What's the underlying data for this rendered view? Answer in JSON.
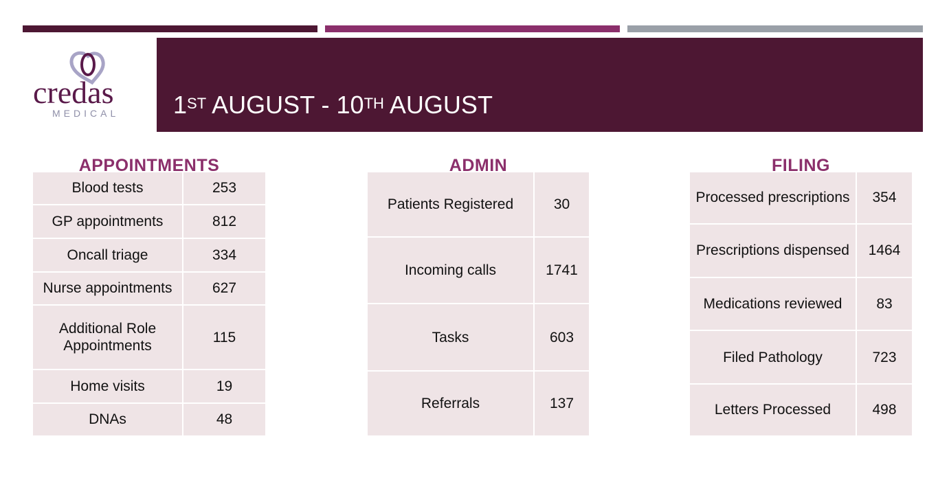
{
  "colors": {
    "plum": "#4d1733",
    "magenta": "#8b2f6b",
    "grey": "#9aa0a8",
    "title_color": "#8b2f6b",
    "cell_bg": "#efe4e6"
  },
  "logo": {
    "wordmark": "credas",
    "subtitle": "MEDICAL"
  },
  "header": {
    "day1": "1",
    "day1_suffix": "ST",
    "mid": " AUGUST - ",
    "day2": "10",
    "day2_suffix": "TH",
    "end": " AUGUST"
  },
  "appointments": {
    "title": "APPOINTMENTS",
    "rows": [
      {
        "label": "Blood tests",
        "value": "253"
      },
      {
        "label": "GP appointments",
        "value": "812"
      },
      {
        "label": "Oncall triage",
        "value": "334"
      },
      {
        "label": "Nurse appointments",
        "value": "627"
      },
      {
        "label": "Additional Role Appointments",
        "value": "115"
      },
      {
        "label": "Home visits",
        "value": "19"
      },
      {
        "label": "DNAs",
        "value": "48"
      }
    ]
  },
  "admin": {
    "title": "ADMIN",
    "rows": [
      {
        "label": "Patients Registered",
        "value": "30"
      },
      {
        "label": "Incoming calls",
        "value": "1741"
      },
      {
        "label": "Tasks",
        "value": "603"
      },
      {
        "label": "Referrals",
        "value": "137"
      }
    ]
  },
  "filing": {
    "title": "FILING",
    "rows": [
      {
        "label": "Processed prescriptions",
        "value": "354"
      },
      {
        "label": "Prescriptions dispensed",
        "value": "1464"
      },
      {
        "label": "Medications reviewed",
        "value": "83"
      },
      {
        "label": "Filed Pathology",
        "value": "723"
      },
      {
        "label": "Letters Processed",
        "value": "498"
      }
    ]
  }
}
